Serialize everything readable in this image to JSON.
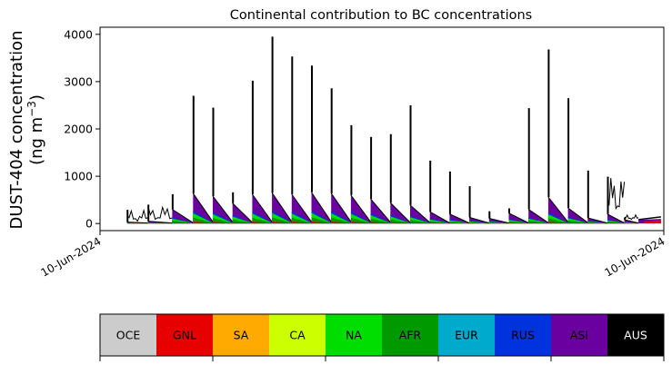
{
  "chart_data": {
    "type": "area",
    "title": "Continental contribution to BC concentrations",
    "ylabel_line1": "DUST-404 concentration",
    "ylabel_line2": "(ng m",
    "ylabel_sup": "−3",
    "ylabel_close": ")",
    "ylim": [
      -150,
      4150
    ],
    "yticks": [
      0,
      1000,
      2000,
      3000,
      4000
    ],
    "xticks": [
      "10-Jun-2024",
      "10-Jun-2024"
    ],
    "grid": false,
    "colors": {
      "total": "#000000",
      "ASI": "#6a00a0",
      "RUS": "#0033dd",
      "NA": "#00dd00",
      "AFR": "#009900",
      "GNL": "#e60000"
    },
    "cycles": [
      {
        "start": 0.048,
        "end": 0.085,
        "peak": 290,
        "base": 30,
        "noise": true
      },
      {
        "start": 0.085,
        "end": 0.128,
        "peak": 400,
        "base": 50,
        "noise": true
      },
      {
        "start": 0.128,
        "end": 0.165,
        "peak": 620,
        "base": 300
      },
      {
        "start": 0.165,
        "end": 0.2,
        "peak": 2700,
        "base": 640
      },
      {
        "start": 0.2,
        "end": 0.235,
        "peak": 2450,
        "base": 580
      },
      {
        "start": 0.235,
        "end": 0.27,
        "peak": 660,
        "base": 430
      },
      {
        "start": 0.27,
        "end": 0.305,
        "peak": 3020,
        "base": 620
      },
      {
        "start": 0.305,
        "end": 0.34,
        "peak": 3950,
        "base": 650
      },
      {
        "start": 0.34,
        "end": 0.375,
        "peak": 3530,
        "base": 620
      },
      {
        "start": 0.375,
        "end": 0.41,
        "peak": 3340,
        "base": 660
      },
      {
        "start": 0.41,
        "end": 0.445,
        "peak": 2860,
        "base": 640
      },
      {
        "start": 0.445,
        "end": 0.48,
        "peak": 2080,
        "base": 600
      },
      {
        "start": 0.48,
        "end": 0.515,
        "peak": 1830,
        "base": 520
      },
      {
        "start": 0.515,
        "end": 0.55,
        "peak": 1890,
        "base": 440
      },
      {
        "start": 0.55,
        "end": 0.585,
        "peak": 2500,
        "base": 390
      },
      {
        "start": 0.585,
        "end": 0.62,
        "peak": 1330,
        "base": 250
      },
      {
        "start": 0.62,
        "end": 0.655,
        "peak": 1100,
        "base": 200
      },
      {
        "start": 0.655,
        "end": 0.69,
        "peak": 790,
        "base": 130
      },
      {
        "start": 0.69,
        "end": 0.725,
        "peak": 260,
        "base": 110
      },
      {
        "start": 0.725,
        "end": 0.76,
        "peak": 320,
        "base": 220
      },
      {
        "start": 0.76,
        "end": 0.795,
        "peak": 2440,
        "base": 300
      },
      {
        "start": 0.795,
        "end": 0.83,
        "peak": 3680,
        "base": 560
      },
      {
        "start": 0.83,
        "end": 0.865,
        "peak": 2650,
        "base": 330
      },
      {
        "start": 0.865,
        "end": 0.9,
        "peak": 1120,
        "base": 120
      },
      {
        "start": 0.9,
        "end": 0.93,
        "peak": 990,
        "base": 200,
        "noise": true
      },
      {
        "start": 0.93,
        "end": 0.955,
        "peak": 120,
        "base": 80,
        "noise": true
      }
    ],
    "tail": {
      "start": 0.955,
      "end": 0.995,
      "value": 140
    },
    "legend": [
      {
        "name": "OCE",
        "color": "#cccccc",
        "text_color": "#000000"
      },
      {
        "name": "GNL",
        "color": "#e60000",
        "text_color": "#000000"
      },
      {
        "name": "SA",
        "color": "#ffaa00",
        "text_color": "#000000"
      },
      {
        "name": "CA",
        "color": "#ccff00",
        "text_color": "#000000"
      },
      {
        "name": "NA",
        "color": "#00dd00",
        "text_color": "#000000"
      },
      {
        "name": "AFR",
        "color": "#009900",
        "text_color": "#000000"
      },
      {
        "name": "EUR",
        "color": "#00aacc",
        "text_color": "#000000"
      },
      {
        "name": "RUS",
        "color": "#0033dd",
        "text_color": "#000000"
      },
      {
        "name": "ASI",
        "color": "#6a00a0",
        "text_color": "#000000"
      },
      {
        "name": "AUS",
        "color": "#000000",
        "text_color": "#ffffff"
      }
    ]
  }
}
